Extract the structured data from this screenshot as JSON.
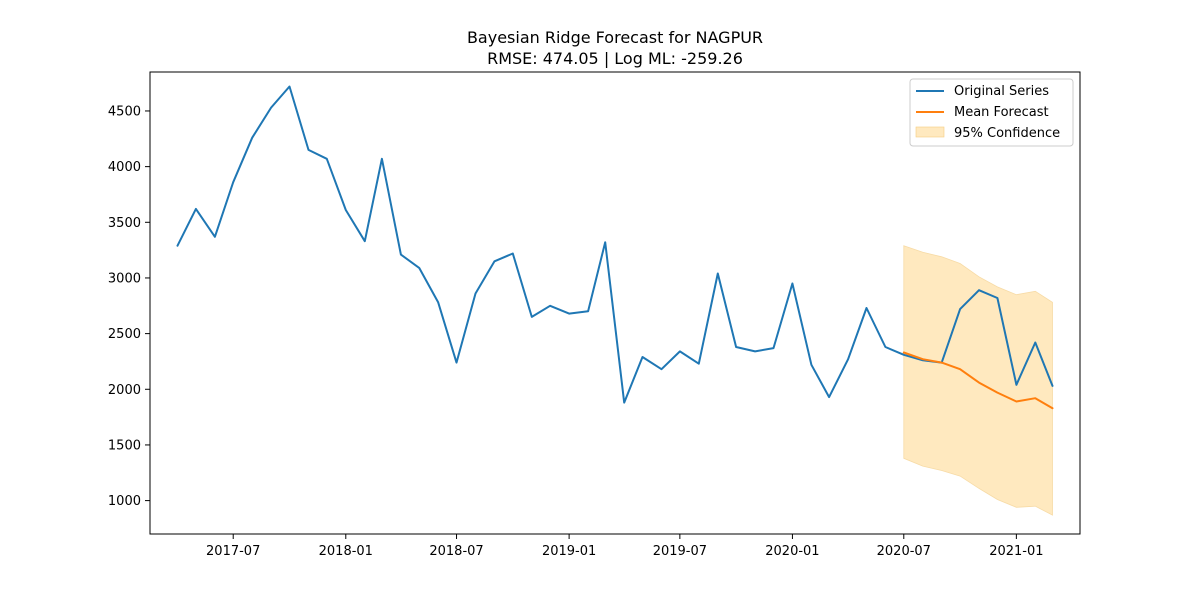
{
  "chart_data": {
    "type": "line",
    "title": "Bayesian Ridge Forecast for NAGPUR",
    "subtitle": "RMSE: 474.05 | Log ML: -259.26",
    "xlabel": "",
    "ylabel": "",
    "xlim": [
      "2017-02-15",
      "2021-04-15"
    ],
    "ylim": [
      700,
      4850
    ],
    "xticks": [
      {
        "date": "2017-07-01",
        "label": "2017-07"
      },
      {
        "date": "2018-01-01",
        "label": "2018-01"
      },
      {
        "date": "2018-07-01",
        "label": "2018-07"
      },
      {
        "date": "2019-01-01",
        "label": "2019-01"
      },
      {
        "date": "2019-07-01",
        "label": "2019-07"
      },
      {
        "date": "2020-01-01",
        "label": "2020-01"
      },
      {
        "date": "2020-07-01",
        "label": "2020-07"
      },
      {
        "date": "2021-01-01",
        "label": "2021-01"
      }
    ],
    "yticks": [
      1000,
      1500,
      2000,
      2500,
      3000,
      3500,
      4000,
      4500
    ],
    "grid": false,
    "legend": {
      "placement": "top-right",
      "entries": [
        {
          "label": "Original Series",
          "kind": "line",
          "color": "#1f77b4"
        },
        {
          "label": "Mean Forecast",
          "kind": "line",
          "color": "#ff7f0e"
        },
        {
          "label": "95% Confidence",
          "kind": "band",
          "color": "#ffe9bf",
          "edge": "#f5cd80"
        }
      ]
    },
    "series": [
      {
        "name": "Original Series",
        "color": "#1f77b4",
        "x": [
          "2017-04-01",
          "2017-05-01",
          "2017-06-01",
          "2017-07-01",
          "2017-08-01",
          "2017-09-01",
          "2017-10-01",
          "2017-11-01",
          "2017-12-01",
          "2018-01-01",
          "2018-02-01",
          "2018-03-01",
          "2018-04-01",
          "2018-05-01",
          "2018-06-01",
          "2018-07-01",
          "2018-08-01",
          "2018-09-01",
          "2018-10-01",
          "2018-11-01",
          "2018-12-01",
          "2019-01-01",
          "2019-02-01",
          "2019-03-01",
          "2019-04-01",
          "2019-05-01",
          "2019-06-01",
          "2019-07-01",
          "2019-08-01",
          "2019-09-01",
          "2019-10-01",
          "2019-11-01",
          "2019-12-01",
          "2020-01-01",
          "2020-02-01",
          "2020-03-01",
          "2020-04-01",
          "2020-05-01",
          "2020-06-01",
          "2020-07-01",
          "2020-08-01",
          "2020-09-01",
          "2020-10-01",
          "2020-11-01",
          "2020-12-01",
          "2021-01-01",
          "2021-02-01",
          "2021-03-01"
        ],
        "values": [
          3290,
          3620,
          3370,
          3860,
          4260,
          4530,
          4720,
          4150,
          4070,
          3610,
          3330,
          4070,
          3210,
          3090,
          2780,
          2240,
          2860,
          3150,
          3220,
          2650,
          2750,
          2680,
          2700,
          3320,
          1880,
          2290,
          2180,
          2340,
          2230,
          3040,
          2380,
          2340,
          2370,
          2950,
          2220,
          1930,
          2270,
          2730,
          2380,
          2310,
          2260,
          2240,
          2720,
          2890,
          2820,
          2040,
          2420,
          2030
        ]
      },
      {
        "name": "Mean Forecast",
        "color": "#ff7f0e",
        "x": [
          "2020-07-01",
          "2020-08-01",
          "2020-09-01",
          "2020-10-01",
          "2020-11-01",
          "2020-12-01",
          "2021-01-01",
          "2021-02-01",
          "2021-03-01"
        ],
        "values": [
          2330,
          2270,
          2240,
          2180,
          2060,
          1970,
          1890,
          1920,
          1830
        ]
      }
    ],
    "band": {
      "name": "95% Confidence",
      "x": [
        "2020-07-01",
        "2020-08-01",
        "2020-09-01",
        "2020-10-01",
        "2020-11-01",
        "2020-12-01",
        "2021-01-01",
        "2021-02-01",
        "2021-03-01"
      ],
      "lower": [
        1380,
        1310,
        1270,
        1220,
        1110,
        1010,
        940,
        950,
        870
      ],
      "upper": [
        3290,
        3230,
        3190,
        3130,
        3010,
        2920,
        2850,
        2880,
        2780
      ]
    }
  }
}
